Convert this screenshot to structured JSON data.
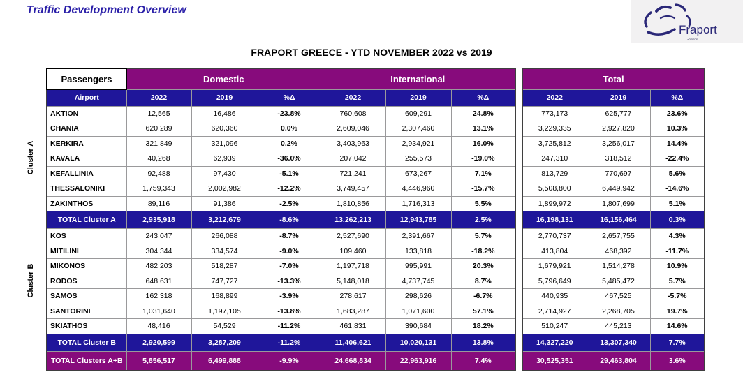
{
  "page_title": "Traffic Development Overview",
  "table_title": "FRAPORT GREECE - YTD NOVEMBER 2022 vs 2019",
  "logo": {
    "name": "Fraport",
    "sub": "Greece"
  },
  "colors": {
    "group_header_purple": "#870b7c",
    "subheader_navy": "#1f169a",
    "title_blue": "#2a1fa8",
    "grid_gray": "#9a999b",
    "logo_navy": "#2b2878"
  },
  "header": {
    "passengers": "Passengers",
    "airport": "Airport",
    "groups": [
      "Domestic",
      "International",
      "Total"
    ],
    "year_cols": [
      "2022",
      "2019",
      "%Δ"
    ]
  },
  "clusters": [
    {
      "label": "Cluster A",
      "rows": [
        {
          "name": "AKTION",
          "values": [
            "12,565",
            "16,486",
            "-23.8%",
            "760,608",
            "609,291",
            "24.8%",
            "773,173",
            "625,777",
            "23.6%"
          ]
        },
        {
          "name": "CHANIA",
          "values": [
            "620,289",
            "620,360",
            "0.0%",
            "2,609,046",
            "2,307,460",
            "13.1%",
            "3,229,335",
            "2,927,820",
            "10.3%"
          ]
        },
        {
          "name": "KERKIRA",
          "values": [
            "321,849",
            "321,096",
            "0.2%",
            "3,403,963",
            "2,934,921",
            "16.0%",
            "3,725,812",
            "3,256,017",
            "14.4%"
          ]
        },
        {
          "name": "KAVALA",
          "values": [
            "40,268",
            "62,939",
            "-36.0%",
            "207,042",
            "255,573",
            "-19.0%",
            "247,310",
            "318,512",
            "-22.4%"
          ]
        },
        {
          "name": "KEFALLINIA",
          "values": [
            "92,488",
            "97,430",
            "-5.1%",
            "721,241",
            "673,267",
            "7.1%",
            "813,729",
            "770,697",
            "5.6%"
          ]
        },
        {
          "name": "THESSALONIKI",
          "values": [
            "1,759,343",
            "2,002,982",
            "-12.2%",
            "3,749,457",
            "4,446,960",
            "-15.7%",
            "5,508,800",
            "6,449,942",
            "-14.6%"
          ]
        },
        {
          "name": "ZAKINTHOS",
          "values": [
            "89,116",
            "91,386",
            "-2.5%",
            "1,810,856",
            "1,716,313",
            "5.5%",
            "1,899,972",
            "1,807,699",
            "5.1%"
          ]
        }
      ],
      "total": {
        "label": "TOTAL Cluster A",
        "values": [
          "2,935,918",
          "3,212,679",
          "-8.6%",
          "13,262,213",
          "12,943,785",
          "2.5%",
          "16,198,131",
          "16,156,464",
          "0.3%"
        ]
      }
    },
    {
      "label": "Cluster B",
      "rows": [
        {
          "name": "KOS",
          "values": [
            "243,047",
            "266,088",
            "-8.7%",
            "2,527,690",
            "2,391,667",
            "5.7%",
            "2,770,737",
            "2,657,755",
            "4.3%"
          ]
        },
        {
          "name": "MITILINI",
          "values": [
            "304,344",
            "334,574",
            "-9.0%",
            "109,460",
            "133,818",
            "-18.2%",
            "413,804",
            "468,392",
            "-11.7%"
          ]
        },
        {
          "name": "MIKONOS",
          "values": [
            "482,203",
            "518,287",
            "-7.0%",
            "1,197,718",
            "995,991",
            "20.3%",
            "1,679,921",
            "1,514,278",
            "10.9%"
          ]
        },
        {
          "name": "RODOS",
          "values": [
            "648,631",
            "747,727",
            "-13.3%",
            "5,148,018",
            "4,737,745",
            "8.7%",
            "5,796,649",
            "5,485,472",
            "5.7%"
          ]
        },
        {
          "name": "SAMOS",
          "values": [
            "162,318",
            "168,899",
            "-3.9%",
            "278,617",
            "298,626",
            "-6.7%",
            "440,935",
            "467,525",
            "-5.7%"
          ]
        },
        {
          "name": "SANTORINI",
          "values": [
            "1,031,640",
            "1,197,105",
            "-13.8%",
            "1,683,287",
            "1,071,600",
            "57.1%",
            "2,714,927",
            "2,268,705",
            "19.7%"
          ]
        },
        {
          "name": "SKIATHOS",
          "values": [
            "48,416",
            "54,529",
            "-11.2%",
            "461,831",
            "390,684",
            "18.2%",
            "510,247",
            "445,213",
            "14.6%"
          ]
        }
      ],
      "total": {
        "label": "TOTAL Cluster B",
        "values": [
          "2,920,599",
          "3,287,209",
          "-11.2%",
          "11,406,621",
          "10,020,131",
          "13.8%",
          "14,327,220",
          "13,307,340",
          "7.7%"
        ]
      }
    }
  ],
  "grand_total": {
    "label": "TOTAL Clusters A+B",
    "values": [
      "5,856,517",
      "6,499,888",
      "-9.9%",
      "24,668,834",
      "22,963,916",
      "7.4%",
      "30,525,351",
      "29,463,804",
      "3.6%"
    ]
  }
}
